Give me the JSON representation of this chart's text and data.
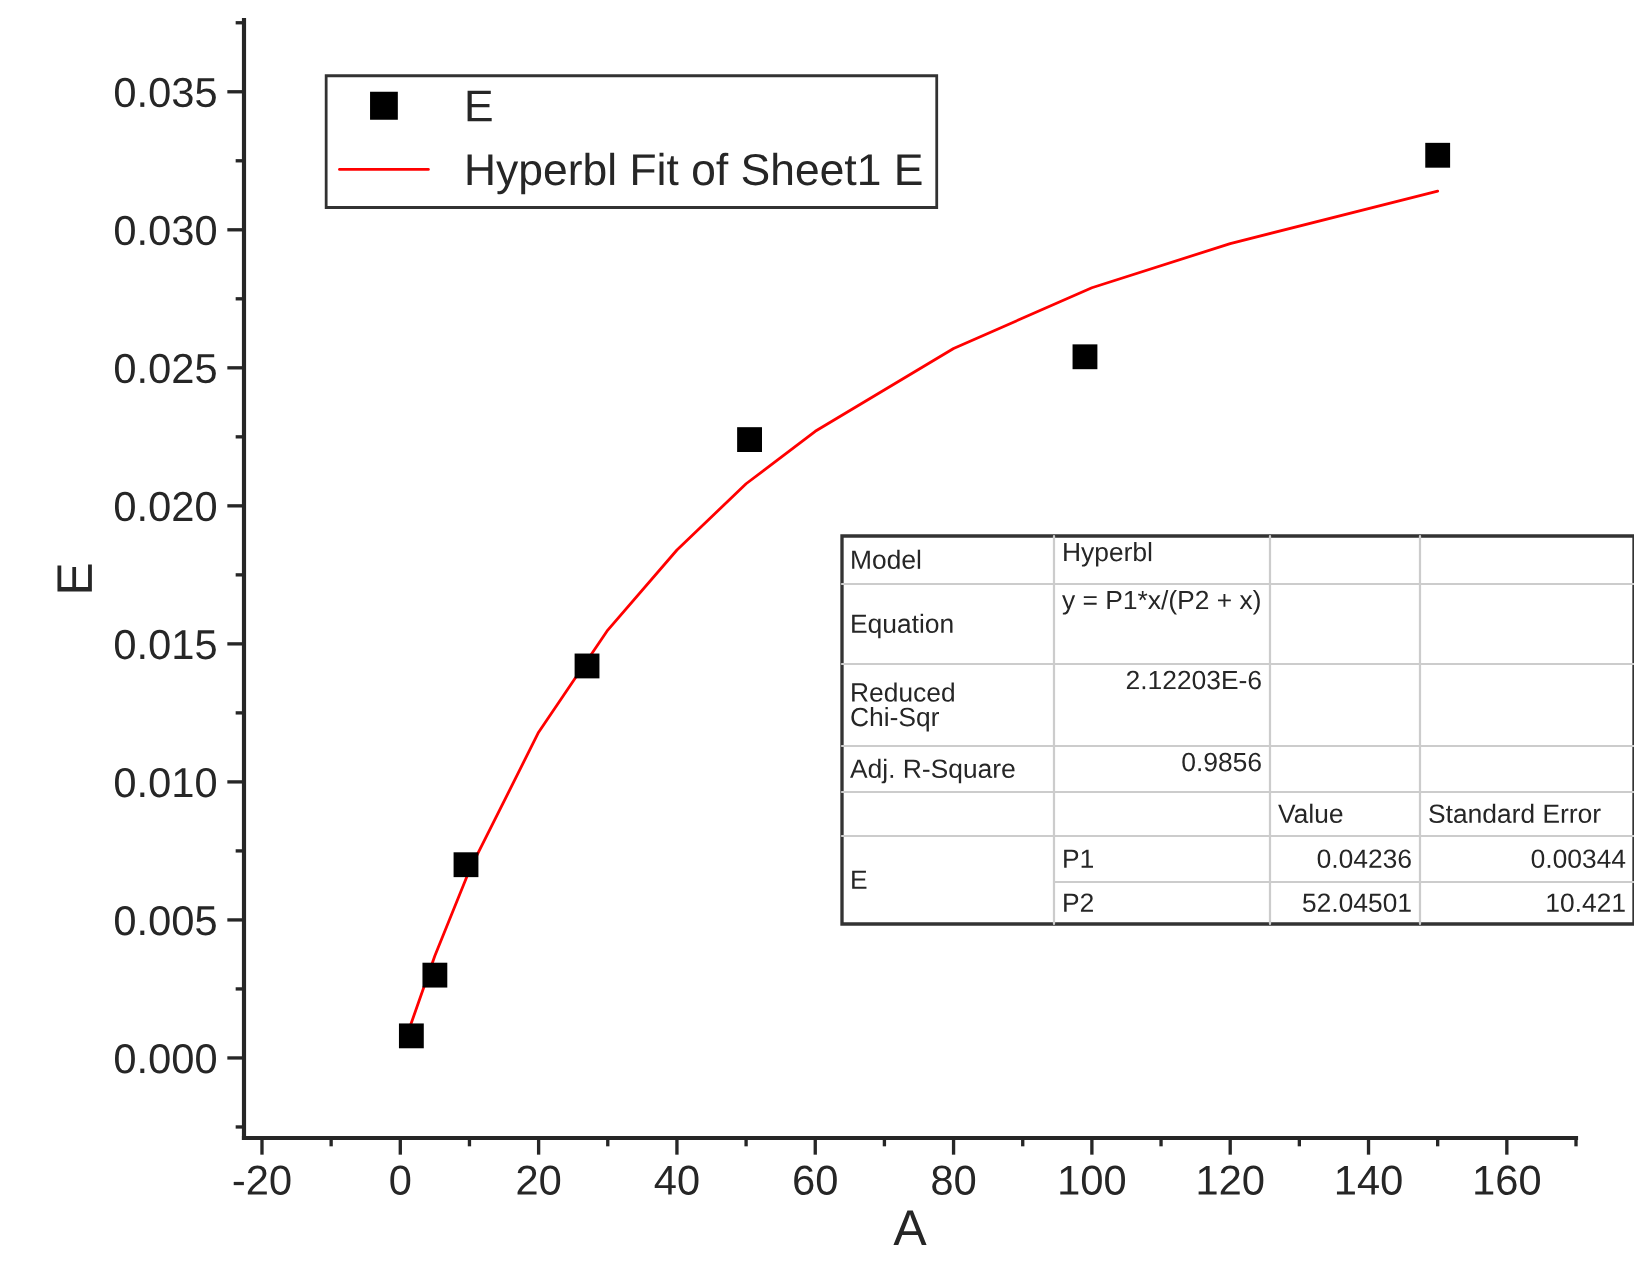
{
  "chart_data": {
    "type": "scatter",
    "xlabel": "A",
    "ylabel": "E",
    "series": [
      {
        "name": "E",
        "color": "#000000",
        "marker": "square",
        "x": [
          1.6,
          5,
          9.5,
          27,
          50.5,
          99,
          150
        ],
        "values": [
          0.0008,
          0.003,
          0.007,
          0.0142,
          0.0224,
          0.0254,
          0.0327
        ]
      },
      {
        "name": "Hyperbl Fit of Sheet1 E",
        "type": "line",
        "color": "#ff0000",
        "marker": "none",
        "line_style": "solid",
        "x": [
          1.5,
          5,
          10,
          20,
          30,
          40,
          50,
          60,
          80,
          100,
          120,
          150
        ],
        "values": [
          0.0012,
          0.0037,
          0.0068,
          0.0118,
          0.0155,
          0.0184,
          0.0208,
          0.0227,
          0.0257,
          0.0279,
          0.0295,
          0.0314
        ]
      }
    ],
    "xlim": [
      -22.6,
      170
    ],
    "xticks": [
      -20,
      0,
      20,
      40,
      60,
      80,
      100,
      120,
      140,
      160
    ],
    "ylim": [
      -0.0029,
      0.0376
    ],
    "yticks": [
      {
        "value": 0,
        "label": "0.000"
      },
      {
        "value": 0.005,
        "label": "0.005"
      },
      {
        "value": 0.01,
        "label": "0.010"
      },
      {
        "value": 0.015,
        "label": "0.015"
      },
      {
        "value": 0.02,
        "label": "0.020"
      },
      {
        "value": 0.025,
        "label": "0.025"
      },
      {
        "value": 0.03,
        "label": "0.030"
      },
      {
        "value": 0.035,
        "label": "0.035"
      }
    ],
    "grid": false,
    "legend": "top left",
    "annotations": [
      "Model",
      "Hyperbl",
      "Equation",
      "y = P1*x/(P2 + x)",
      "Reduced\nChi-Sqr",
      "2.12203E-6",
      "Adj. R-Square",
      "0.9856",
      "Value",
      "Standard Error",
      "E",
      "P1",
      "0.04236",
      "0.00344",
      "P2",
      "52.04501",
      "10.421"
    ]
  }
}
